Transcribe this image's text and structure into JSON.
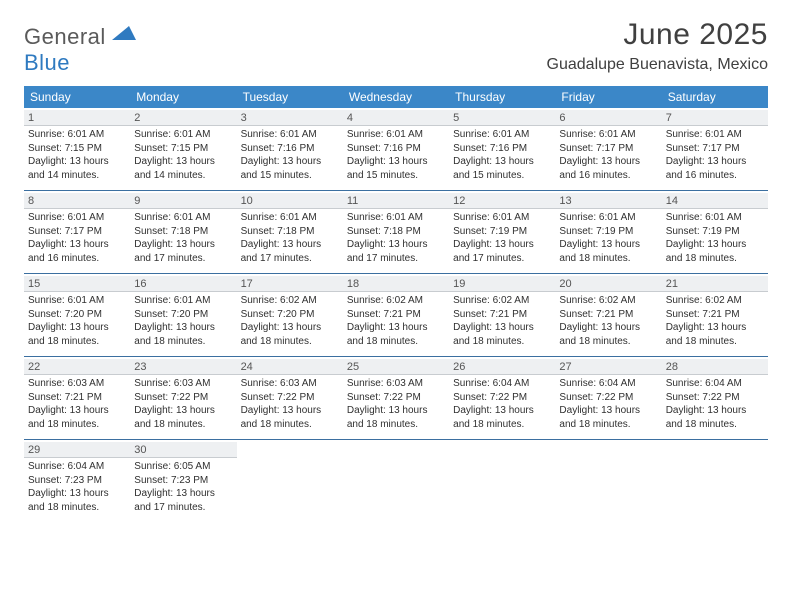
{
  "brand": {
    "general": "General",
    "blue": "Blue"
  },
  "header": {
    "title": "June 2025",
    "location": "Guadalupe Buenavista, Mexico"
  },
  "colors": {
    "header_bg": "#3b87c8",
    "header_text": "#ffffff",
    "week_border": "#3b6fa0",
    "daynum_bg": "#eef0f2",
    "title_color": "#404040"
  },
  "dow": [
    "Sunday",
    "Monday",
    "Tuesday",
    "Wednesday",
    "Thursday",
    "Friday",
    "Saturday"
  ],
  "weeks": [
    [
      {
        "n": "1",
        "sr": "Sunrise: 6:01 AM",
        "ss": "Sunset: 7:15 PM",
        "d1": "Daylight: 13 hours",
        "d2": "and 14 minutes."
      },
      {
        "n": "2",
        "sr": "Sunrise: 6:01 AM",
        "ss": "Sunset: 7:15 PM",
        "d1": "Daylight: 13 hours",
        "d2": "and 14 minutes."
      },
      {
        "n": "3",
        "sr": "Sunrise: 6:01 AM",
        "ss": "Sunset: 7:16 PM",
        "d1": "Daylight: 13 hours",
        "d2": "and 15 minutes."
      },
      {
        "n": "4",
        "sr": "Sunrise: 6:01 AM",
        "ss": "Sunset: 7:16 PM",
        "d1": "Daylight: 13 hours",
        "d2": "and 15 minutes."
      },
      {
        "n": "5",
        "sr": "Sunrise: 6:01 AM",
        "ss": "Sunset: 7:16 PM",
        "d1": "Daylight: 13 hours",
        "d2": "and 15 minutes."
      },
      {
        "n": "6",
        "sr": "Sunrise: 6:01 AM",
        "ss": "Sunset: 7:17 PM",
        "d1": "Daylight: 13 hours",
        "d2": "and 16 minutes."
      },
      {
        "n": "7",
        "sr": "Sunrise: 6:01 AM",
        "ss": "Sunset: 7:17 PM",
        "d1": "Daylight: 13 hours",
        "d2": "and 16 minutes."
      }
    ],
    [
      {
        "n": "8",
        "sr": "Sunrise: 6:01 AM",
        "ss": "Sunset: 7:17 PM",
        "d1": "Daylight: 13 hours",
        "d2": "and 16 minutes."
      },
      {
        "n": "9",
        "sr": "Sunrise: 6:01 AM",
        "ss": "Sunset: 7:18 PM",
        "d1": "Daylight: 13 hours",
        "d2": "and 17 minutes."
      },
      {
        "n": "10",
        "sr": "Sunrise: 6:01 AM",
        "ss": "Sunset: 7:18 PM",
        "d1": "Daylight: 13 hours",
        "d2": "and 17 minutes."
      },
      {
        "n": "11",
        "sr": "Sunrise: 6:01 AM",
        "ss": "Sunset: 7:18 PM",
        "d1": "Daylight: 13 hours",
        "d2": "and 17 minutes."
      },
      {
        "n": "12",
        "sr": "Sunrise: 6:01 AM",
        "ss": "Sunset: 7:19 PM",
        "d1": "Daylight: 13 hours",
        "d2": "and 17 minutes."
      },
      {
        "n": "13",
        "sr": "Sunrise: 6:01 AM",
        "ss": "Sunset: 7:19 PM",
        "d1": "Daylight: 13 hours",
        "d2": "and 18 minutes."
      },
      {
        "n": "14",
        "sr": "Sunrise: 6:01 AM",
        "ss": "Sunset: 7:19 PM",
        "d1": "Daylight: 13 hours",
        "d2": "and 18 minutes."
      }
    ],
    [
      {
        "n": "15",
        "sr": "Sunrise: 6:01 AM",
        "ss": "Sunset: 7:20 PM",
        "d1": "Daylight: 13 hours",
        "d2": "and 18 minutes."
      },
      {
        "n": "16",
        "sr": "Sunrise: 6:01 AM",
        "ss": "Sunset: 7:20 PM",
        "d1": "Daylight: 13 hours",
        "d2": "and 18 minutes."
      },
      {
        "n": "17",
        "sr": "Sunrise: 6:02 AM",
        "ss": "Sunset: 7:20 PM",
        "d1": "Daylight: 13 hours",
        "d2": "and 18 minutes."
      },
      {
        "n": "18",
        "sr": "Sunrise: 6:02 AM",
        "ss": "Sunset: 7:21 PM",
        "d1": "Daylight: 13 hours",
        "d2": "and 18 minutes."
      },
      {
        "n": "19",
        "sr": "Sunrise: 6:02 AM",
        "ss": "Sunset: 7:21 PM",
        "d1": "Daylight: 13 hours",
        "d2": "and 18 minutes."
      },
      {
        "n": "20",
        "sr": "Sunrise: 6:02 AM",
        "ss": "Sunset: 7:21 PM",
        "d1": "Daylight: 13 hours",
        "d2": "and 18 minutes."
      },
      {
        "n": "21",
        "sr": "Sunrise: 6:02 AM",
        "ss": "Sunset: 7:21 PM",
        "d1": "Daylight: 13 hours",
        "d2": "and 18 minutes."
      }
    ],
    [
      {
        "n": "22",
        "sr": "Sunrise: 6:03 AM",
        "ss": "Sunset: 7:21 PM",
        "d1": "Daylight: 13 hours",
        "d2": "and 18 minutes."
      },
      {
        "n": "23",
        "sr": "Sunrise: 6:03 AM",
        "ss": "Sunset: 7:22 PM",
        "d1": "Daylight: 13 hours",
        "d2": "and 18 minutes."
      },
      {
        "n": "24",
        "sr": "Sunrise: 6:03 AM",
        "ss": "Sunset: 7:22 PM",
        "d1": "Daylight: 13 hours",
        "d2": "and 18 minutes."
      },
      {
        "n": "25",
        "sr": "Sunrise: 6:03 AM",
        "ss": "Sunset: 7:22 PM",
        "d1": "Daylight: 13 hours",
        "d2": "and 18 minutes."
      },
      {
        "n": "26",
        "sr": "Sunrise: 6:04 AM",
        "ss": "Sunset: 7:22 PM",
        "d1": "Daylight: 13 hours",
        "d2": "and 18 minutes."
      },
      {
        "n": "27",
        "sr": "Sunrise: 6:04 AM",
        "ss": "Sunset: 7:22 PM",
        "d1": "Daylight: 13 hours",
        "d2": "and 18 minutes."
      },
      {
        "n": "28",
        "sr": "Sunrise: 6:04 AM",
        "ss": "Sunset: 7:22 PM",
        "d1": "Daylight: 13 hours",
        "d2": "and 18 minutes."
      }
    ],
    [
      {
        "n": "29",
        "sr": "Sunrise: 6:04 AM",
        "ss": "Sunset: 7:23 PM",
        "d1": "Daylight: 13 hours",
        "d2": "and 18 minutes."
      },
      {
        "n": "30",
        "sr": "Sunrise: 6:05 AM",
        "ss": "Sunset: 7:23 PM",
        "d1": "Daylight: 13 hours",
        "d2": "and 17 minutes."
      },
      {
        "empty": true
      },
      {
        "empty": true
      },
      {
        "empty": true
      },
      {
        "empty": true
      },
      {
        "empty": true
      }
    ]
  ]
}
